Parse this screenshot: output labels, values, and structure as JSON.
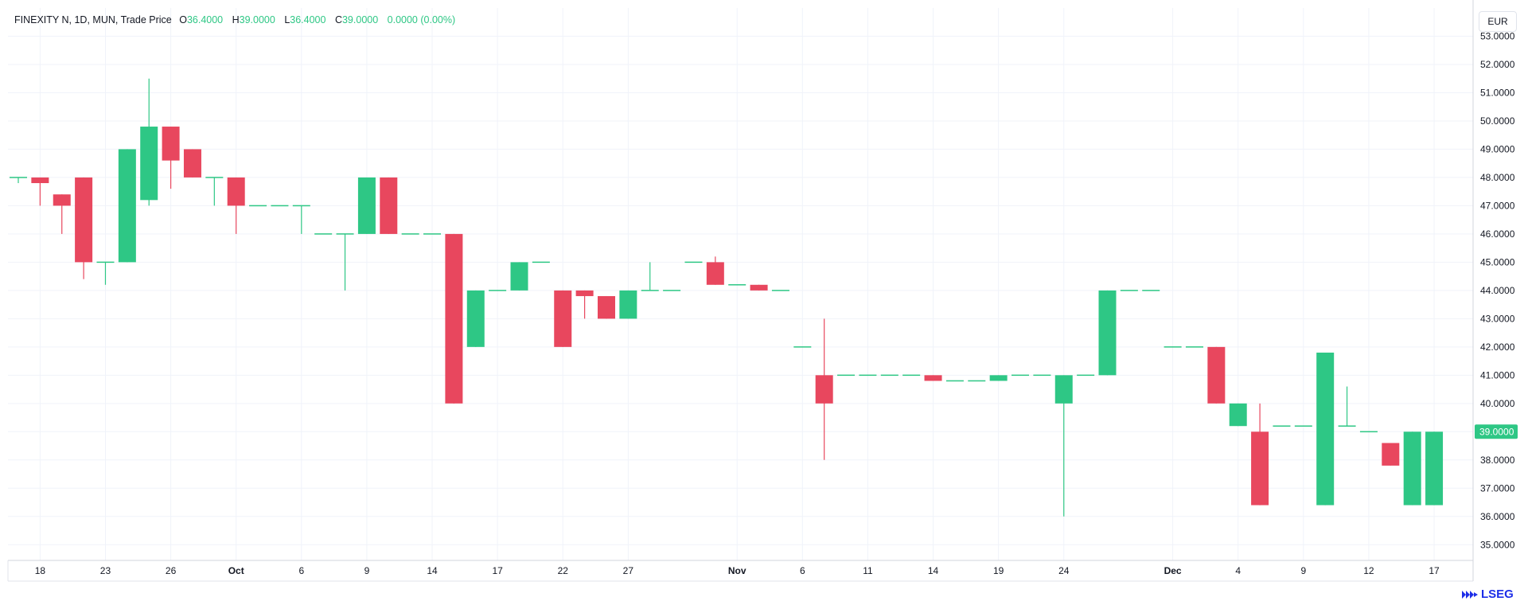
{
  "header": {
    "symbol": "FINEXITY N, 1D, MUN, Trade Price",
    "o_label": "O",
    "o_value": "36.4000",
    "h_label": "H",
    "h_value": "39.0000",
    "l_label": "L",
    "l_value": "36.4000",
    "c_label": "C",
    "c_value": "39.0000",
    "change": "0.0000 (0.00%)"
  },
  "currency": "EUR",
  "logo": "LSEG",
  "colors": {
    "up": "#2ec785",
    "down": "#e8475e",
    "grid": "#f0f3fa",
    "axis_text": "#131722",
    "price_tag": "#2ec785"
  },
  "chart_data": {
    "type": "candlestick",
    "title": "FINEXITY N, 1D, MUN, Trade Price",
    "ylabel": "EUR",
    "ylim": [
      34.5,
      54.0
    ],
    "y_ticks": [
      "35.0000",
      "36.0000",
      "37.0000",
      "38.0000",
      "39.0000",
      "40.0000",
      "41.0000",
      "42.0000",
      "43.0000",
      "44.0000",
      "45.0000",
      "46.0000",
      "47.0000",
      "48.0000",
      "49.0000",
      "50.0000",
      "51.0000",
      "52.0000",
      "53.0000"
    ],
    "x_ticks": [
      {
        "label": "18",
        "index": 1
      },
      {
        "label": "23",
        "index": 4
      },
      {
        "label": "26",
        "index": 7
      },
      {
        "label": "Oct",
        "index": 10,
        "bold": true
      },
      {
        "label": "6",
        "index": 13
      },
      {
        "label": "9",
        "index": 16
      },
      {
        "label": "14",
        "index": 19
      },
      {
        "label": "17",
        "index": 22
      },
      {
        "label": "22",
        "index": 25
      },
      {
        "label": "27",
        "index": 28
      },
      {
        "label": "Nov",
        "index": 33,
        "bold": true
      },
      {
        "label": "6",
        "index": 36
      },
      {
        "label": "11",
        "index": 39
      },
      {
        "label": "14",
        "index": 42
      },
      {
        "label": "19",
        "index": 45
      },
      {
        "label": "24",
        "index": 48
      },
      {
        "label": "Dec",
        "index": 53,
        "bold": true
      },
      {
        "label": "4",
        "index": 56
      },
      {
        "label": "9",
        "index": 59
      },
      {
        "label": "12",
        "index": 62
      },
      {
        "label": "17",
        "index": 65
      }
    ],
    "candles": [
      {
        "o": 48.0,
        "h": 48.0,
        "l": 47.8,
        "c": 48.0
      },
      {
        "o": 48.0,
        "h": 48.0,
        "l": 47.0,
        "c": 47.8
      },
      {
        "o": 47.4,
        "h": 47.4,
        "l": 46.0,
        "c": 47.0
      },
      {
        "o": 48.0,
        "h": 48.0,
        "l": 44.4,
        "c": 45.0
      },
      {
        "o": 45.0,
        "h": 45.0,
        "l": 44.2,
        "c": 45.0
      },
      {
        "o": 45.0,
        "h": 49.0,
        "l": 45.0,
        "c": 49.0
      },
      {
        "o": 47.2,
        "h": 51.5,
        "l": 47.0,
        "c": 49.8
      },
      {
        "o": 49.8,
        "h": 49.8,
        "l": 47.6,
        "c": 48.6
      },
      {
        "o": 49.0,
        "h": 49.0,
        "l": 48.0,
        "c": 48.0
      },
      {
        "o": 48.0,
        "h": 48.0,
        "l": 47.0,
        "c": 48.0
      },
      {
        "o": 48.0,
        "h": 48.0,
        "l": 46.0,
        "c": 47.0
      },
      {
        "o": 47.0,
        "h": 47.0,
        "l": 47.0,
        "c": 47.0
      },
      {
        "o": 47.0,
        "h": 47.0,
        "l": 47.0,
        "c": 47.0
      },
      {
        "o": 47.0,
        "h": 47.0,
        "l": 46.0,
        "c": 47.0
      },
      {
        "o": 46.0,
        "h": 46.0,
        "l": 46.0,
        "c": 46.0
      },
      {
        "o": 46.0,
        "h": 46.0,
        "l": 44.0,
        "c": 46.0
      },
      {
        "o": 46.0,
        "h": 48.0,
        "l": 46.0,
        "c": 48.0
      },
      {
        "o": 48.0,
        "h": 48.0,
        "l": 46.0,
        "c": 46.0
      },
      {
        "o": 46.0,
        "h": 46.0,
        "l": 46.0,
        "c": 46.0
      },
      {
        "o": 46.0,
        "h": 46.0,
        "l": 46.0,
        "c": 46.0
      },
      {
        "o": 46.0,
        "h": 46.0,
        "l": 40.0,
        "c": 40.0
      },
      {
        "o": 42.0,
        "h": 44.0,
        "l": 42.0,
        "c": 44.0
      },
      {
        "o": 44.0,
        "h": 44.0,
        "l": 44.0,
        "c": 44.0
      },
      {
        "o": 44.0,
        "h": 45.0,
        "l": 44.0,
        "c": 45.0
      },
      {
        "o": 45.0,
        "h": 45.0,
        "l": 45.0,
        "c": 45.0
      },
      {
        "o": 44.0,
        "h": 44.0,
        "l": 42.0,
        "c": 42.0
      },
      {
        "o": 44.0,
        "h": 44.0,
        "l": 43.0,
        "c": 43.8
      },
      {
        "o": 43.8,
        "h": 43.8,
        "l": 43.0,
        "c": 43.0
      },
      {
        "o": 43.0,
        "h": 44.0,
        "l": 43.0,
        "c": 44.0
      },
      {
        "o": 44.0,
        "h": 45.0,
        "l": 44.0,
        "c": 44.0
      },
      {
        "o": 44.0,
        "h": 44.0,
        "l": 44.0,
        "c": 44.0
      },
      {
        "o": 45.0,
        "h": 45.0,
        "l": 45.0,
        "c": 45.0
      },
      {
        "o": 45.0,
        "h": 45.2,
        "l": 44.2,
        "c": 44.2
      },
      {
        "o": 44.2,
        "h": 44.2,
        "l": 44.2,
        "c": 44.2
      },
      {
        "o": 44.2,
        "h": 44.2,
        "l": 44.0,
        "c": 44.0
      },
      {
        "o": 44.0,
        "h": 44.0,
        "l": 44.0,
        "c": 44.0
      },
      {
        "o": 42.0,
        "h": 42.0,
        "l": 42.0,
        "c": 42.0
      },
      {
        "o": 41.0,
        "h": 43.0,
        "l": 38.0,
        "c": 40.0
      },
      {
        "o": 41.0,
        "h": 41.0,
        "l": 41.0,
        "c": 41.0
      },
      {
        "o": 41.0,
        "h": 41.0,
        "l": 41.0,
        "c": 41.0
      },
      {
        "o": 41.0,
        "h": 41.0,
        "l": 41.0,
        "c": 41.0
      },
      {
        "o": 41.0,
        "h": 41.0,
        "l": 41.0,
        "c": 41.0
      },
      {
        "o": 41.0,
        "h": 41.0,
        "l": 40.8,
        "c": 40.8
      },
      {
        "o": 40.8,
        "h": 40.8,
        "l": 40.8,
        "c": 40.8
      },
      {
        "o": 40.8,
        "h": 40.8,
        "l": 40.8,
        "c": 40.8
      },
      {
        "o": 40.8,
        "h": 41.0,
        "l": 40.8,
        "c": 41.0
      },
      {
        "o": 41.0,
        "h": 41.0,
        "l": 41.0,
        "c": 41.0
      },
      {
        "o": 41.0,
        "h": 41.0,
        "l": 41.0,
        "c": 41.0
      },
      {
        "o": 40.0,
        "h": 41.0,
        "l": 36.0,
        "c": 41.0
      },
      {
        "o": 41.0,
        "h": 41.0,
        "l": 41.0,
        "c": 41.0
      },
      {
        "o": 41.0,
        "h": 44.0,
        "l": 41.0,
        "c": 44.0
      },
      {
        "o": 44.0,
        "h": 44.0,
        "l": 44.0,
        "c": 44.0
      },
      {
        "o": 44.0,
        "h": 44.0,
        "l": 44.0,
        "c": 44.0
      },
      {
        "o": 42.0,
        "h": 42.0,
        "l": 42.0,
        "c": 42.0
      },
      {
        "o": 42.0,
        "h": 42.0,
        "l": 42.0,
        "c": 42.0
      },
      {
        "o": 42.0,
        "h": 42.0,
        "l": 40.0,
        "c": 40.0
      },
      {
        "o": 39.2,
        "h": 40.0,
        "l": 39.2,
        "c": 40.0
      },
      {
        "o": 39.0,
        "h": 40.0,
        "l": 36.4,
        "c": 36.4
      },
      {
        "o": 39.2,
        "h": 39.2,
        "l": 39.2,
        "c": 39.2
      },
      {
        "o": 39.2,
        "h": 39.2,
        "l": 39.2,
        "c": 39.2
      },
      {
        "o": 36.4,
        "h": 41.8,
        "l": 36.4,
        "c": 41.8
      },
      {
        "o": 39.2,
        "h": 40.6,
        "l": 39.2,
        "c": 39.2
      },
      {
        "o": 39.0,
        "h": 39.0,
        "l": 39.0,
        "c": 39.0
      },
      {
        "o": 38.6,
        "h": 38.6,
        "l": 37.8,
        "c": 37.8
      },
      {
        "o": 36.4,
        "h": 39.0,
        "l": 36.4,
        "c": 39.0
      },
      {
        "o": 36.4,
        "h": 39.0,
        "l": 36.4,
        "c": 39.0
      }
    ],
    "last_price": "39.0000",
    "grid": true
  }
}
